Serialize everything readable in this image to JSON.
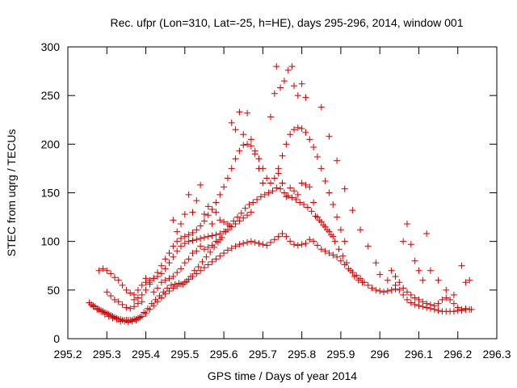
{
  "chart_data": {
    "type": "scatter",
    "title": "Rec. ufpr (Lon=310, Lat=-25, h=HE), days 295-296, 2014, window 001",
    "xlabel": "GPS time / Days of year 2014",
    "ylabel": "STEC from uqrg / TECUs",
    "xlim": [
      295.2,
      296.3
    ],
    "ylim": [
      0,
      300
    ],
    "xticks": [
      "295.2",
      "295.3",
      "295.4",
      "295.5",
      "295.6",
      "295.7",
      "295.8",
      "295.9",
      "296",
      "296.1",
      "296.2",
      "296.3"
    ],
    "xtick_values": [
      295.2,
      295.3,
      295.4,
      295.5,
      295.6,
      295.7,
      295.8,
      295.9,
      296.0,
      296.1,
      296.2,
      296.3
    ],
    "yticks": [
      "0",
      "50",
      "100",
      "150",
      "200",
      "250",
      "300"
    ],
    "ytick_values": [
      0,
      50,
      100,
      150,
      200,
      250,
      300
    ],
    "marker": "+",
    "color": "#cc0000",
    "grid": false,
    "points": [
      [
        295.255,
        37
      ],
      [
        295.26,
        35
      ],
      [
        295.265,
        34
      ],
      [
        295.27,
        33
      ],
      [
        295.275,
        31
      ],
      [
        295.28,
        30
      ],
      [
        295.285,
        29
      ],
      [
        295.29,
        28
      ],
      [
        295.295,
        27
      ],
      [
        295.3,
        26
      ],
      [
        295.305,
        25
      ],
      [
        295.31,
        24
      ],
      [
        295.315,
        23
      ],
      [
        295.32,
        22
      ],
      [
        295.325,
        21
      ],
      [
        295.33,
        20
      ],
      [
        295.335,
        20
      ],
      [
        295.34,
        19
      ],
      [
        295.345,
        19
      ],
      [
        295.35,
        19
      ],
      [
        295.355,
        19
      ],
      [
        295.36,
        19
      ],
      [
        295.365,
        19
      ],
      [
        295.37,
        20
      ],
      [
        295.375,
        20
      ],
      [
        295.38,
        21
      ],
      [
        295.385,
        22
      ],
      [
        295.39,
        23
      ],
      [
        295.4,
        26
      ],
      [
        295.41,
        30
      ],
      [
        295.42,
        34
      ],
      [
        295.43,
        38
      ],
      [
        295.44,
        42
      ],
      [
        295.45,
        46
      ],
      [
        295.46,
        49
      ],
      [
        295.47,
        52
      ],
      [
        295.48,
        54
      ],
      [
        295.49,
        56
      ],
      [
        295.5,
        58
      ],
      [
        295.51,
        61
      ],
      [
        295.52,
        64
      ],
      [
        295.53,
        67
      ],
      [
        295.54,
        70
      ],
      [
        295.55,
        73
      ],
      [
        295.56,
        76
      ],
      [
        295.57,
        79
      ],
      [
        295.58,
        82
      ],
      [
        295.59,
        85
      ],
      [
        295.6,
        88
      ],
      [
        295.61,
        91
      ],
      [
        295.62,
        93
      ],
      [
        295.63,
        95
      ],
      [
        295.64,
        97
      ],
      [
        295.65,
        98
      ],
      [
        295.66,
        99
      ],
      [
        295.67,
        100
      ],
      [
        295.68,
        99
      ],
      [
        295.69,
        98
      ],
      [
        295.7,
        97
      ],
      [
        295.71,
        96
      ],
      [
        295.72,
        99
      ],
      [
        295.73,
        102
      ],
      [
        295.74,
        105
      ],
      [
        295.75,
        108
      ],
      [
        295.76,
        105
      ],
      [
        295.77,
        100
      ],
      [
        295.78,
        97
      ],
      [
        295.79,
        96
      ],
      [
        295.8,
        97
      ],
      [
        295.81,
        98
      ],
      [
        295.82,
        102
      ],
      [
        295.83,
        100
      ],
      [
        295.84,
        96
      ],
      [
        295.85,
        92
      ],
      [
        295.86,
        90
      ],
      [
        295.87,
        88
      ],
      [
        295.88,
        86
      ],
      [
        295.89,
        84
      ],
      [
        295.9,
        80
      ],
      [
        295.91,
        76
      ],
      [
        295.92,
        72
      ],
      [
        295.93,
        68
      ],
      [
        295.94,
        65
      ],
      [
        295.95,
        62
      ],
      [
        295.96,
        58
      ],
      [
        295.97,
        55
      ],
      [
        295.98,
        52
      ],
      [
        295.99,
        50
      ],
      [
        296.0,
        49
      ],
      [
        296.01,
        48
      ],
      [
        296.02,
        49
      ],
      [
        296.03,
        50
      ],
      [
        296.04,
        51
      ],
      [
        296.05,
        50
      ],
      [
        296.06,
        45
      ],
      [
        296.07,
        40
      ],
      [
        296.08,
        37
      ],
      [
        296.09,
        35
      ],
      [
        296.1,
        34
      ],
      [
        296.11,
        33
      ],
      [
        296.12,
        32
      ],
      [
        296.13,
        31
      ],
      [
        296.14,
        30
      ],
      [
        296.15,
        29
      ],
      [
        296.16,
        28
      ],
      [
        296.17,
        28
      ],
      [
        296.18,
        28
      ],
      [
        296.19,
        28
      ],
      [
        296.2,
        29
      ],
      [
        296.21,
        29
      ],
      [
        296.22,
        30
      ],
      [
        296.23,
        30
      ],
      [
        296.235,
        30
      ],
      [
        295.265,
        33
      ],
      [
        295.275,
        30
      ],
      [
        295.285,
        28
      ],
      [
        295.295,
        25
      ],
      [
        295.305,
        23
      ],
      [
        295.315,
        21
      ],
      [
        295.325,
        20
      ],
      [
        295.335,
        18
      ],
      [
        295.345,
        18
      ],
      [
        295.355,
        17
      ],
      [
        295.365,
        18
      ],
      [
        295.375,
        19
      ],
      [
        295.385,
        22
      ],
      [
        295.395,
        27
      ],
      [
        295.405,
        31
      ],
      [
        295.415,
        36
      ],
      [
        295.425,
        40
      ],
      [
        295.435,
        44
      ],
      [
        295.445,
        48
      ],
      [
        295.455,
        52
      ],
      [
        295.465,
        55
      ],
      [
        295.475,
        56
      ],
      [
        295.485,
        57
      ],
      [
        295.495,
        56
      ],
      [
        295.505,
        59
      ],
      [
        295.515,
        64
      ],
      [
        295.525,
        70
      ],
      [
        295.535,
        74
      ],
      [
        295.545,
        79
      ],
      [
        295.555,
        84
      ],
      [
        295.565,
        89
      ],
      [
        295.575,
        94
      ],
      [
        295.585,
        99
      ],
      [
        295.595,
        104
      ],
      [
        295.605,
        110
      ],
      [
        295.615,
        116
      ],
      [
        295.625,
        121
      ],
      [
        295.635,
        125
      ],
      [
        295.645,
        129
      ],
      [
        295.655,
        134
      ],
      [
        295.665,
        138
      ],
      [
        295.675,
        140
      ],
      [
        295.685,
        143
      ],
      [
        295.695,
        146
      ],
      [
        295.705,
        148
      ],
      [
        295.715,
        150
      ],
      [
        295.725,
        152
      ],
      [
        295.735,
        155
      ],
      [
        295.745,
        154
      ],
      [
        295.755,
        150
      ],
      [
        295.765,
        147
      ],
      [
        295.775,
        145
      ],
      [
        295.785,
        143
      ],
      [
        295.795,
        140
      ],
      [
        295.805,
        138
      ],
      [
        295.815,
        135
      ],
      [
        295.825,
        131
      ],
      [
        295.835,
        126
      ],
      [
        295.845,
        122
      ],
      [
        295.855,
        117
      ],
      [
        295.865,
        112
      ],
      [
        295.875,
        107
      ],
      [
        295.885,
        100
      ],
      [
        295.895,
        92
      ],
      [
        295.905,
        85
      ],
      [
        295.915,
        78
      ],
      [
        295.925,
        70
      ],
      [
        295.935,
        64
      ],
      [
        295.945,
        60
      ],
      [
        295.955,
        58
      ],
      [
        295.37,
        40
      ],
      [
        295.38,
        42
      ],
      [
        295.39,
        45
      ],
      [
        295.4,
        50
      ],
      [
        295.41,
        56
      ],
      [
        295.42,
        62
      ],
      [
        295.43,
        68
      ],
      [
        295.44,
        75
      ],
      [
        295.45,
        82
      ],
      [
        295.46,
        88
      ],
      [
        295.47,
        95
      ],
      [
        295.48,
        100
      ],
      [
        295.49,
        103
      ],
      [
        295.5,
        105
      ],
      [
        295.51,
        107
      ],
      [
        295.52,
        109
      ],
      [
        295.53,
        112
      ],
      [
        295.54,
        116
      ],
      [
        295.55,
        121
      ],
      [
        295.56,
        127
      ],
      [
        295.57,
        133
      ],
      [
        295.58,
        140
      ],
      [
        295.59,
        148
      ],
      [
        295.6,
        156
      ],
      [
        295.61,
        165
      ],
      [
        295.62,
        175
      ],
      [
        295.63,
        185
      ],
      [
        295.64,
        193
      ],
      [
        295.65,
        199
      ],
      [
        295.66,
        200
      ],
      [
        295.67,
        198
      ],
      [
        295.68,
        193
      ],
      [
        295.69,
        185
      ],
      [
        295.7,
        175
      ],
      [
        295.71,
        165
      ],
      [
        295.72,
        160
      ],
      [
        295.73,
        165
      ],
      [
        295.74,
        175
      ],
      [
        295.75,
        188
      ],
      [
        295.76,
        200
      ],
      [
        295.77,
        210
      ],
      [
        295.78,
        215
      ],
      [
        295.79,
        217
      ],
      [
        295.8,
        216
      ],
      [
        295.81,
        212
      ],
      [
        295.82,
        205
      ],
      [
        295.83,
        197
      ],
      [
        295.84,
        187
      ],
      [
        295.85,
        175
      ],
      [
        295.86,
        162
      ],
      [
        295.87,
        150
      ],
      [
        295.88,
        138
      ],
      [
        295.89,
        125
      ],
      [
        295.9,
        112
      ],
      [
        295.91,
        100
      ],
      [
        295.28,
        70
      ],
      [
        295.29,
        72
      ],
      [
        295.3,
        70
      ],
      [
        295.31,
        67
      ],
      [
        295.32,
        63
      ],
      [
        295.33,
        60
      ],
      [
        295.34,
        55
      ],
      [
        295.35,
        50
      ],
      [
        295.36,
        47
      ],
      [
        295.37,
        45
      ],
      [
        295.38,
        50
      ],
      [
        295.39,
        55
      ],
      [
        295.4,
        58
      ],
      [
        295.41,
        60
      ],
      [
        295.42,
        62
      ],
      [
        295.43,
        64
      ],
      [
        295.44,
        67
      ],
      [
        295.45,
        72
      ],
      [
        295.46,
        78
      ],
      [
        295.47,
        84
      ],
      [
        295.48,
        90
      ],
      [
        295.49,
        95
      ],
      [
        295.5,
        98
      ],
      [
        295.51,
        100
      ],
      [
        295.52,
        101
      ],
      [
        295.53,
        102
      ],
      [
        295.54,
        103
      ],
      [
        295.55,
        104
      ],
      [
        295.56,
        105
      ],
      [
        295.57,
        106
      ],
      [
        295.58,
        107
      ],
      [
        295.59,
        108
      ],
      [
        295.6,
        110
      ],
      [
        295.61,
        112
      ],
      [
        295.62,
        115
      ],
      [
        295.63,
        118
      ],
      [
        295.64,
        121
      ],
      [
        295.65,
        124
      ],
      [
        295.66,
        127
      ],
      [
        295.67,
        130
      ],
      [
        295.72,
        228
      ],
      [
        295.73,
        252
      ],
      [
        295.735,
        280
      ],
      [
        295.745,
        258
      ],
      [
        295.755,
        265
      ],
      [
        295.765,
        276
      ],
      [
        295.775,
        280
      ],
      [
        295.78,
        260
      ],
      [
        295.79,
        250
      ],
      [
        295.8,
        262
      ],
      [
        295.81,
        248
      ],
      [
        295.62,
        222
      ],
      [
        295.63,
        215
      ],
      [
        295.64,
        233
      ],
      [
        295.65,
        210
      ],
      [
        295.66,
        232
      ],
      [
        295.67,
        205
      ],
      [
        295.68,
        190
      ],
      [
        295.69,
        175
      ],
      [
        295.7,
        160
      ],
      [
        295.85,
        238
      ],
      [
        295.87,
        208
      ],
      [
        295.89,
        183
      ],
      [
        295.91,
        154
      ],
      [
        295.93,
        132
      ],
      [
        295.95,
        112
      ],
      [
        295.97,
        95
      ],
      [
        295.99,
        78
      ],
      [
        296.0,
        66
      ],
      [
        296.02,
        60
      ],
      [
        296.04,
        55
      ],
      [
        296.06,
        100
      ],
      [
        296.07,
        118
      ],
      [
        296.08,
        97
      ],
      [
        296.09,
        80
      ],
      [
        296.1,
        70
      ],
      [
        296.11,
        60
      ],
      [
        296.12,
        108
      ],
      [
        296.13,
        70
      ],
      [
        296.15,
        60
      ],
      [
        296.17,
        50
      ],
      [
        296.19,
        45
      ],
      [
        296.21,
        75
      ],
      [
        296.22,
        58
      ],
      [
        296.23,
        60
      ],
      [
        295.47,
        122
      ],
      [
        295.48,
        110
      ],
      [
        295.49,
        118
      ],
      [
        295.5,
        128
      ],
      [
        295.51,
        148
      ],
      [
        295.52,
        130
      ],
      [
        295.53,
        142
      ],
      [
        295.54,
        158
      ],
      [
        295.55,
        128
      ],
      [
        295.56,
        136
      ],
      [
        295.57,
        118
      ],
      [
        295.58,
        130
      ],
      [
        295.59,
        122
      ],
      [
        295.6,
        120
      ],
      [
        295.61,
        118
      ],
      [
        295.74,
        170
      ],
      [
        295.75,
        160
      ],
      [
        295.76,
        146
      ],
      [
        295.77,
        155
      ],
      [
        295.78,
        152
      ],
      [
        295.79,
        148
      ],
      [
        295.8,
        160
      ],
      [
        295.81,
        158
      ],
      [
        295.82,
        156
      ],
      [
        295.83,
        140
      ],
      [
        295.84,
        125
      ],
      [
        295.85,
        120
      ],
      [
        295.86,
        115
      ],
      [
        295.87,
        110
      ],
      [
        295.88,
        105
      ],
      [
        295.3,
        48
      ],
      [
        295.31,
        44
      ],
      [
        295.32,
        40
      ],
      [
        295.33,
        38
      ],
      [
        295.34,
        35
      ],
      [
        295.35,
        32
      ],
      [
        295.36,
        31
      ],
      [
        295.37,
        33
      ],
      [
        295.38,
        36
      ],
      [
        295.39,
        38
      ],
      [
        295.4,
        62
      ],
      [
        295.41,
        58
      ],
      [
        295.42,
        48
      ],
      [
        295.43,
        52
      ],
      [
        295.44,
        58
      ],
      [
        295.45,
        60
      ],
      [
        295.46,
        62
      ],
      [
        295.47,
        64
      ],
      [
        295.48,
        68
      ],
      [
        295.49,
        72
      ],
      [
        295.5,
        78
      ],
      [
        295.51,
        82
      ],
      [
        295.52,
        88
      ],
      [
        295.53,
        90
      ],
      [
        295.54,
        95
      ],
      [
        295.55,
        92
      ],
      [
        295.56,
        94
      ],
      [
        295.57,
        96
      ],
      [
        295.58,
        100
      ],
      [
        295.59,
        102
      ],
      [
        296.03,
        70
      ],
      [
        296.04,
        64
      ],
      [
        296.05,
        58
      ],
      [
        296.06,
        52
      ],
      [
        296.07,
        48
      ],
      [
        296.08,
        45
      ],
      [
        296.09,
        42
      ],
      [
        296.1,
        40
      ],
      [
        296.11,
        38
      ],
      [
        296.12,
        36
      ],
      [
        296.13,
        35
      ],
      [
        296.14,
        34
      ],
      [
        296.15,
        36
      ],
      [
        296.16,
        40
      ],
      [
        296.17,
        42
      ],
      [
        296.18,
        40
      ],
      [
        296.19,
        36
      ],
      [
        296.2,
        32
      ],
      [
        296.21,
        30
      ],
      [
        296.22,
        31
      ]
    ]
  }
}
